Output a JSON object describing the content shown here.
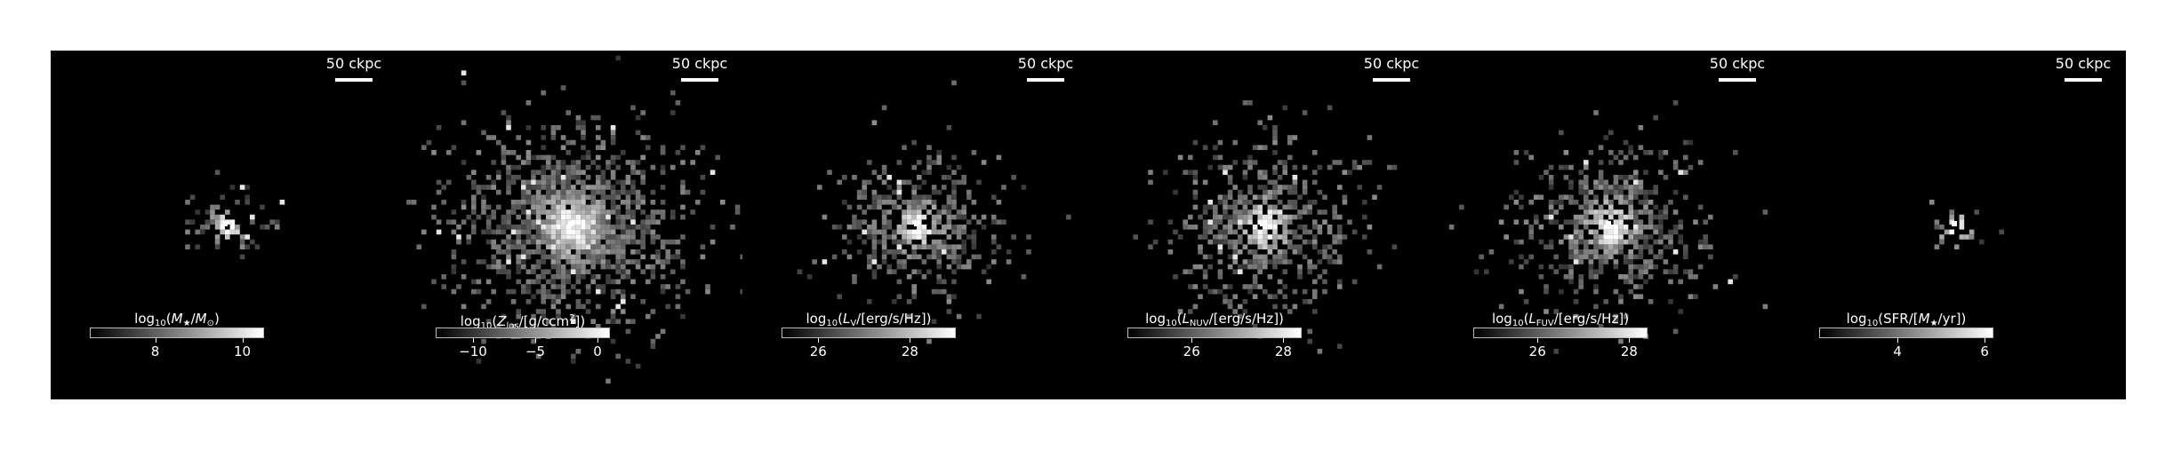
{
  "panels": [
    {
      "id": "stellar-mass",
      "scalebar": "50 ckpc",
      "cbar_label_parts": [
        [
          "t",
          "log"
        ],
        [
          "s",
          "10"
        ],
        [
          "t",
          "("
        ],
        [
          "i",
          "M"
        ],
        [
          "s",
          "★"
        ],
        [
          "t",
          "/"
        ],
        [
          "i",
          "M"
        ],
        [
          "s",
          "⊙"
        ],
        [
          "t",
          ")"
        ]
      ],
      "cbar_range": [
        6.5,
        10.5
      ],
      "ticks": [
        {
          "value": 8,
          "label": "8"
        },
        {
          "value": 10,
          "label": "10"
        }
      ],
      "halo_scale": 0.35
    },
    {
      "id": "metallicity",
      "scalebar": "50 ckpc",
      "cbar_label_parts": [
        [
          "t",
          "log"
        ],
        [
          "s",
          "10"
        ],
        [
          "t",
          "("
        ],
        [
          "i",
          "Z"
        ],
        [
          "s",
          "los"
        ],
        [
          "t",
          "/[g/ccm"
        ],
        [
          "p",
          "2"
        ],
        [
          "t",
          "])"
        ]
      ],
      "cbar_range": [
        -13,
        1
      ],
      "ticks": [
        {
          "value": -10,
          "label": "−10"
        },
        {
          "value": -5,
          "label": "−5"
        },
        {
          "value": 0,
          "label": "0"
        }
      ],
      "halo_scale": 1.0
    },
    {
      "id": "v-band",
      "scalebar": "50 ckpc",
      "cbar_label_parts": [
        [
          "t",
          "log"
        ],
        [
          "s",
          "10"
        ],
        [
          "t",
          "("
        ],
        [
          "i",
          "L"
        ],
        [
          "s",
          "V"
        ],
        [
          "t",
          "/[erg/s/Hz])"
        ]
      ],
      "cbar_range": [
        25.2,
        29.0
      ],
      "ticks": [
        {
          "value": 26,
          "label": "26"
        },
        {
          "value": 28,
          "label": "28"
        }
      ],
      "halo_scale": 0.7
    },
    {
      "id": "nuv",
      "scalebar": "50 ckpc",
      "cbar_label_parts": [
        [
          "t",
          "log"
        ],
        [
          "s",
          "10"
        ],
        [
          "t",
          "("
        ],
        [
          "i",
          "L"
        ],
        [
          "s",
          "NUV"
        ],
        [
          "t",
          "/[erg/s/Hz])"
        ]
      ],
      "cbar_range": [
        24.6,
        28.4
      ],
      "ticks": [
        {
          "value": 26,
          "label": "26"
        },
        {
          "value": 28,
          "label": "28"
        }
      ],
      "halo_scale": 0.8
    },
    {
      "id": "fuv",
      "scalebar": "50 ckpc",
      "cbar_label_parts": [
        [
          "t",
          "log"
        ],
        [
          "s",
          "10"
        ],
        [
          "t",
          "("
        ],
        [
          "i",
          "L"
        ],
        [
          "s",
          "FUV"
        ],
        [
          "t",
          "/[erg/s/Hz])"
        ]
      ],
      "cbar_range": [
        24.6,
        28.4
      ],
      "ticks": [
        {
          "value": 26,
          "label": "26"
        },
        {
          "value": 28,
          "label": "28"
        }
      ],
      "halo_scale": 0.8
    },
    {
      "id": "sfr",
      "scalebar": "50 ckpc",
      "cbar_label_parts": [
        [
          "t",
          "log"
        ],
        [
          "s",
          "10"
        ],
        [
          "t",
          "(SFR/["
        ],
        [
          "i",
          "M"
        ],
        [
          "s",
          "★"
        ],
        [
          "t",
          "/yr])"
        ]
      ],
      "cbar_range": [
        2.2,
        6.2
      ],
      "ticks": [
        {
          "value": 4,
          "label": "4"
        },
        {
          "value": 6,
          "label": "6"
        }
      ],
      "halo_scale": 0.22
    }
  ]
}
